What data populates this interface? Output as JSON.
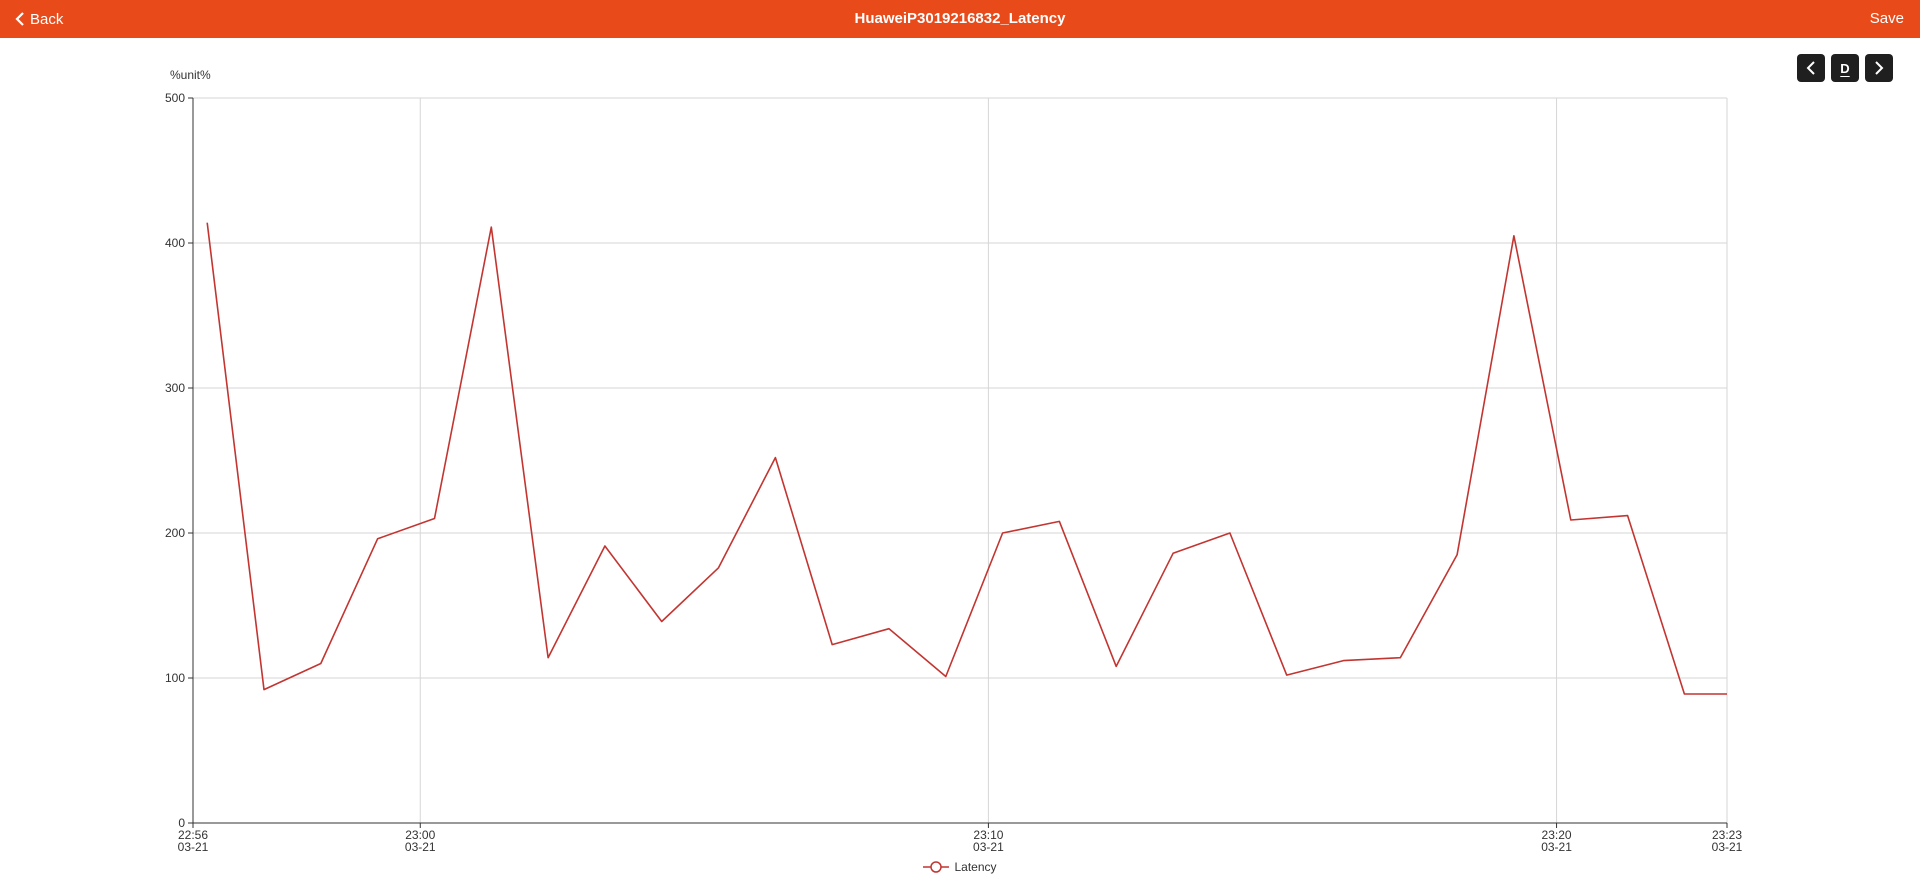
{
  "header": {
    "back_label": "Back",
    "title": "HuaweiP3019216832_Latency",
    "save_label": "Save",
    "accent_color": "#e84a1a"
  },
  "controls": {
    "prev_icon": "chevron-left-icon",
    "mode_label": "D",
    "next_icon": "chevron-right-icon"
  },
  "chart_data": {
    "type": "line",
    "unit_label": "%unit%",
    "ylim": [
      0,
      500
    ],
    "y_ticks": [
      0,
      100,
      200,
      300,
      400,
      500
    ],
    "x_range": [
      "22:56",
      "23:23"
    ],
    "x_ticks": [
      {
        "time": "22:56",
        "date": "03-21"
      },
      {
        "time": "23:00",
        "date": "03-21"
      },
      {
        "time": "23:10",
        "date": "03-21"
      },
      {
        "time": "23:20",
        "date": "03-21"
      },
      {
        "time": "23:23",
        "date": "03-21"
      }
    ],
    "grid": true,
    "legend_position": "bottom-center",
    "series": [
      {
        "name": "Latency",
        "color": "#c23531",
        "x": [
          "22:56:15",
          "22:57:15",
          "22:58:15",
          "22:59:15",
          "23:00:15",
          "23:01:15",
          "23:02:15",
          "23:03:15",
          "23:04:15",
          "23:05:15",
          "23:06:15",
          "23:07:15",
          "23:08:15",
          "23:09:15",
          "23:10:15",
          "23:11:15",
          "23:12:15",
          "23:13:15",
          "23:14:15",
          "23:15:15",
          "23:16:15",
          "23:17:15",
          "23:18:15",
          "23:19:15",
          "23:20:15",
          "23:21:15",
          "23:22:15",
          "23:23:00"
        ],
        "values": [
          414,
          92,
          110,
          196,
          210,
          411,
          114,
          191,
          139,
          176,
          252,
          123,
          134,
          101,
          200,
          208,
          108,
          186,
          200,
          102,
          112,
          114,
          185,
          405,
          209,
          212,
          89,
          89
        ]
      }
    ]
  }
}
